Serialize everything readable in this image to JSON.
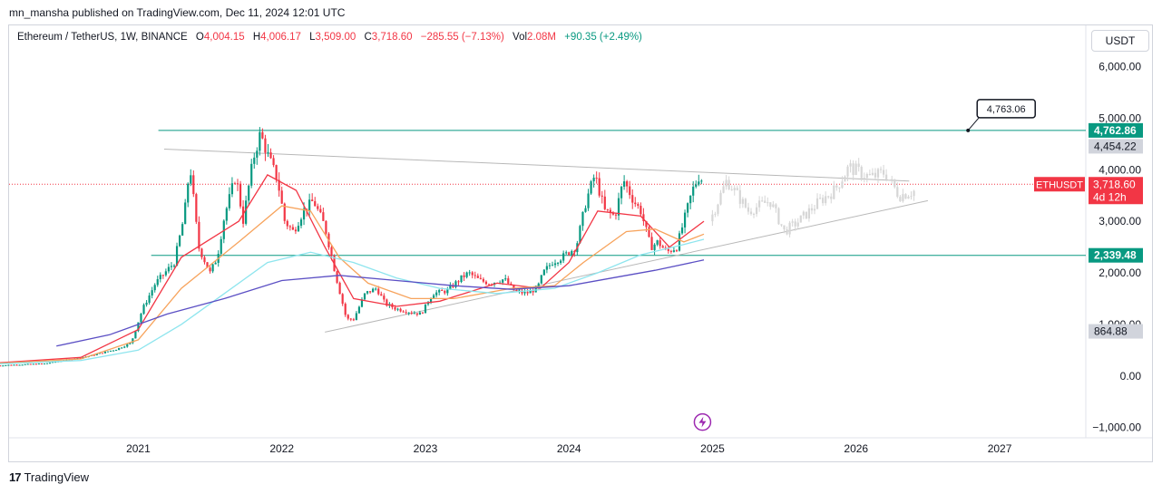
{
  "header": {
    "published": "mn_mansha published on TradingView.com, Dec 11, 2024 12:01 UTC"
  },
  "legend": {
    "symbol": "Ethereum / TetherUS, 1W, BINANCE",
    "open_label": "O",
    "open": "4,004.15",
    "high_label": "H",
    "high": "4,006.17",
    "low_label": "L",
    "low": "3,509.00",
    "close_label": "C",
    "close": "3,718.60",
    "change": "−285.55 (−7.13%)",
    "vol_label": "Vol",
    "vol": "2.08M",
    "vol_change": "+90.35 (+2.49%)"
  },
  "currency_button": "USDT",
  "footer": {
    "brand": "TradingView"
  },
  "colors": {
    "up": "#089981",
    "down": "#f23645",
    "ema_red": "#f23645",
    "ema_orange": "#f7a35c",
    "ema_cyan": "#8ee5ee",
    "ema_purple": "#5b4fc4",
    "level": "#089981",
    "projection": "#d6d6d6"
  },
  "chart_data": {
    "type": "candlestick",
    "timeframe": "1W",
    "y_axis": {
      "ticks": [
        -1000,
        0,
        1000,
        2000,
        3000,
        4000,
        5000,
        6000
      ],
      "tick_labels": [
        "−1,000.00",
        "0.00",
        "1,000.00",
        "2,000.00",
        "3,000.00",
        "4,000.00",
        "5,000.00",
        "6,000.00"
      ],
      "ylim": [
        -1200,
        6800
      ]
    },
    "x_axis": {
      "ticks": [
        2021,
        2022,
        2023,
        2024,
        2025,
        2026,
        2027
      ],
      "tick_labels": [
        "2021",
        "2022",
        "2023",
        "2024",
        "2025",
        "2026",
        "2027"
      ],
      "xlim": [
        2020.1,
        2027.6
      ]
    },
    "price_labels": [
      {
        "value": 4762.86,
        "text": "4,762.86",
        "kind": "level"
      },
      {
        "value": 4454.22,
        "text": "4,454.22",
        "kind": "gray"
      },
      {
        "value": 3718.6,
        "text": "3,718.60",
        "kind": "last",
        "symbol": "ETHUSDT",
        "countdown": "4d 12h"
      },
      {
        "value": 2339.48,
        "text": "2,339.48",
        "kind": "level"
      },
      {
        "value": 864.88,
        "text": "864.88",
        "kind": "gray"
      }
    ],
    "horizontal_levels": [
      {
        "value": 4762.86,
        "x_start": 2021.14
      },
      {
        "value": 2339.48,
        "x_start": 2021.09
      }
    ],
    "callout": {
      "text": "4,763.06",
      "x": 2026.78,
      "y": 4763.06
    },
    "trendlines": [
      {
        "from": [
          2021.18,
          4400
        ],
        "to": [
          2026.37,
          3780
        ]
      },
      {
        "from": [
          2022.3,
          850
        ],
        "to": [
          2026.5,
          3400
        ]
      }
    ],
    "last_price": 3718.6,
    "candles_key_points": [
      [
        2020.0,
        200
      ],
      [
        2020.35,
        240
      ],
      [
        2020.65,
        380
      ],
      [
        2020.85,
        520
      ],
      [
        2020.95,
        640
      ],
      [
        2021.03,
        1300
      ],
      [
        2021.12,
        1800
      ],
      [
        2021.25,
        2200
      ],
      [
        2021.32,
        3100
      ],
      [
        2021.36,
        4100
      ],
      [
        2021.42,
        2500
      ],
      [
        2021.5,
        2000
      ],
      [
        2021.55,
        2300
      ],
      [
        2021.6,
        3100
      ],
      [
        2021.68,
        3900
      ],
      [
        2021.73,
        3000
      ],
      [
        2021.8,
        4200
      ],
      [
        2021.85,
        4700
      ],
      [
        2021.9,
        4300
      ],
      [
        2021.97,
        3800
      ],
      [
        2022.02,
        3000
      ],
      [
        2022.08,
        2800
      ],
      [
        2022.15,
        3200
      ],
      [
        2022.22,
        3400
      ],
      [
        2022.3,
        2900
      ],
      [
        2022.38,
        1900
      ],
      [
        2022.45,
        1100
      ],
      [
        2022.5,
        1100
      ],
      [
        2022.58,
        1600
      ],
      [
        2022.66,
        1700
      ],
      [
        2022.72,
        1400
      ],
      [
        2022.8,
        1300
      ],
      [
        2022.88,
        1250
      ],
      [
        2022.97,
        1200
      ],
      [
        2023.05,
        1600
      ],
      [
        2023.15,
        1650
      ],
      [
        2023.25,
        1900
      ],
      [
        2023.3,
        2000
      ],
      [
        2023.38,
        1850
      ],
      [
        2023.45,
        1800
      ],
      [
        2023.55,
        1880
      ],
      [
        2023.62,
        1650
      ],
      [
        2023.7,
        1600
      ],
      [
        2023.78,
        1700
      ],
      [
        2023.82,
        2000
      ],
      [
        2023.88,
        2200
      ],
      [
        2023.95,
        2300
      ],
      [
        2024.05,
        2500
      ],
      [
        2024.12,
        3400
      ],
      [
        2024.18,
        3900
      ],
      [
        2024.25,
        3200
      ],
      [
        2024.32,
        3100
      ],
      [
        2024.38,
        3800
      ],
      [
        2024.45,
        3400
      ],
      [
        2024.5,
        3200
      ],
      [
        2024.57,
        2500
      ],
      [
        2024.62,
        2600
      ],
      [
        2024.68,
        2400
      ],
      [
        2024.75,
        2500
      ],
      [
        2024.8,
        3000
      ],
      [
        2024.86,
        3600
      ],
      [
        2024.91,
        3900
      ],
      [
        2024.94,
        3718.6
      ]
    ],
    "ema_series": [
      {
        "key": "ema_red",
        "points": [
          [
            2020.0,
            250
          ],
          [
            2020.6,
            360
          ],
          [
            2021.0,
            900
          ],
          [
            2021.3,
            2300
          ],
          [
            2021.7,
            3000
          ],
          [
            2021.9,
            3900
          ],
          [
            2022.1,
            3600
          ],
          [
            2022.3,
            2500
          ],
          [
            2022.5,
            1500
          ],
          [
            2022.8,
            1350
          ],
          [
            2023.1,
            1450
          ],
          [
            2023.5,
            1800
          ],
          [
            2023.8,
            1700
          ],
          [
            2024.0,
            2200
          ],
          [
            2024.2,
            3200
          ],
          [
            2024.5,
            3100
          ],
          [
            2024.7,
            2500
          ],
          [
            2024.94,
            3000
          ]
        ]
      },
      {
        "key": "ema_orange",
        "points": [
          [
            2020.0,
            240
          ],
          [
            2020.6,
            330
          ],
          [
            2021.0,
            700
          ],
          [
            2021.3,
            1700
          ],
          [
            2021.7,
            2600
          ],
          [
            2022.0,
            3300
          ],
          [
            2022.2,
            3200
          ],
          [
            2022.4,
            2300
          ],
          [
            2022.6,
            1800
          ],
          [
            2022.9,
            1500
          ],
          [
            2023.2,
            1500
          ],
          [
            2023.6,
            1700
          ],
          [
            2023.9,
            1750
          ],
          [
            2024.1,
            2200
          ],
          [
            2024.4,
            2800
          ],
          [
            2024.6,
            2850
          ],
          [
            2024.8,
            2600
          ],
          [
            2024.94,
            2750
          ]
        ]
      },
      {
        "key": "ema_cyan",
        "points": [
          [
            2020.0,
            230
          ],
          [
            2020.6,
            300
          ],
          [
            2021.0,
            500
          ],
          [
            2021.3,
            1000
          ],
          [
            2021.6,
            1600
          ],
          [
            2021.9,
            2200
          ],
          [
            2022.2,
            2400
          ],
          [
            2022.5,
            2200
          ],
          [
            2022.8,
            1900
          ],
          [
            2023.1,
            1700
          ],
          [
            2023.5,
            1600
          ],
          [
            2023.9,
            1700
          ],
          [
            2024.2,
            2000
          ],
          [
            2024.5,
            2350
          ],
          [
            2024.8,
            2550
          ],
          [
            2024.94,
            2650
          ]
        ]
      },
      {
        "key": "ema_purple",
        "points": [
          [
            2020.43,
            580
          ],
          [
            2020.8,
            800
          ],
          [
            2021.2,
            1200
          ],
          [
            2021.6,
            1500
          ],
          [
            2022.0,
            1850
          ],
          [
            2022.4,
            1950
          ],
          [
            2022.8,
            1850
          ],
          [
            2023.2,
            1750
          ],
          [
            2023.6,
            1680
          ],
          [
            2024.0,
            1750
          ],
          [
            2024.3,
            1900
          ],
          [
            2024.6,
            2050
          ],
          [
            2024.94,
            2250
          ]
        ]
      }
    ],
    "projection_key_points": [
      [
        2024.98,
        3000
      ],
      [
        2025.1,
        3800
      ],
      [
        2025.25,
        3200
      ],
      [
        2025.4,
        3400
      ],
      [
        2025.5,
        2800
      ],
      [
        2025.6,
        3000
      ],
      [
        2025.75,
        3400
      ],
      [
        2025.85,
        3600
      ],
      [
        2025.95,
        4050
      ],
      [
        2026.1,
        3850
      ],
      [
        2026.2,
        3950
      ],
      [
        2026.3,
        3500
      ],
      [
        2026.42,
        3600
      ]
    ],
    "annotation_icon": {
      "x": 2024.93,
      "y": -1000
    }
  }
}
